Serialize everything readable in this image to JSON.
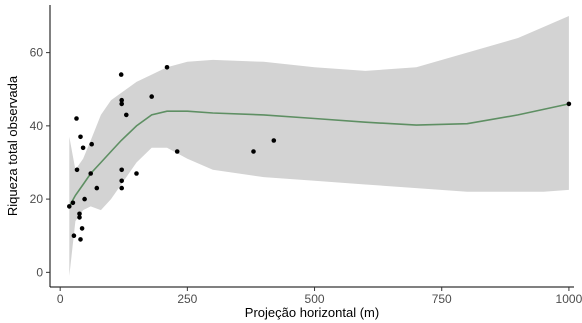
{
  "chart_data": {
    "type": "scatter",
    "title": "",
    "xlabel": "Projeção horizontal (m)",
    "ylabel": "Riqueza total observada",
    "xlim": [
      -20,
      1010
    ],
    "ylim": [
      -4,
      73
    ],
    "xticks": [
      0,
      250,
      500,
      750,
      1000
    ],
    "yticks": [
      0,
      20,
      40,
      60
    ],
    "xtick_labels": [
      "0",
      "250",
      "500",
      "750",
      "1000"
    ],
    "ytick_labels": [
      "0",
      "20",
      "40",
      "60"
    ],
    "grid": false,
    "points": [
      {
        "x": 18,
        "y": 18
      },
      {
        "x": 25,
        "y": 19
      },
      {
        "x": 27,
        "y": 10
      },
      {
        "x": 32,
        "y": 42
      },
      {
        "x": 33,
        "y": 28
      },
      {
        "x": 38,
        "y": 16
      },
      {
        "x": 38,
        "y": 15
      },
      {
        "x": 40,
        "y": 9
      },
      {
        "x": 40,
        "y": 37
      },
      {
        "x": 43,
        "y": 12
      },
      {
        "x": 45,
        "y": 34
      },
      {
        "x": 48,
        "y": 20
      },
      {
        "x": 60,
        "y": 27
      },
      {
        "x": 62,
        "y": 35
      },
      {
        "x": 72,
        "y": 23
      },
      {
        "x": 120,
        "y": 54
      },
      {
        "x": 121,
        "y": 47
      },
      {
        "x": 121,
        "y": 46
      },
      {
        "x": 121,
        "y": 28
      },
      {
        "x": 121,
        "y": 25
      },
      {
        "x": 121,
        "y": 23
      },
      {
        "x": 130,
        "y": 43
      },
      {
        "x": 150,
        "y": 27
      },
      {
        "x": 180,
        "y": 48
      },
      {
        "x": 210,
        "y": 56
      },
      {
        "x": 230,
        "y": 33
      },
      {
        "x": 380,
        "y": 33
      },
      {
        "x": 420,
        "y": 36
      },
      {
        "x": 1000,
        "y": 46
      }
    ],
    "smooth": {
      "color": "#5e8f63",
      "band_color": "#d3d3d3",
      "x": [
        18,
        30,
        45,
        60,
        80,
        100,
        120,
        150,
        180,
        210,
        250,
        300,
        400,
        500,
        600,
        700,
        800,
        900,
        950,
        1000
      ],
      "y": [
        18,
        21,
        24,
        27,
        30,
        33,
        36,
        40,
        43,
        44,
        44,
        43.5,
        43,
        42,
        41,
        40.2,
        40.6,
        43,
        44.5,
        46
      ],
      "lower": [
        -1,
        14,
        17,
        18,
        17,
        20,
        24,
        30,
        34,
        34,
        31,
        28,
        26,
        25,
        24,
        23,
        22,
        22,
        22,
        22.5
      ],
      "upper": [
        37,
        28,
        31,
        36,
        43,
        47,
        49,
        52,
        54,
        56,
        57.5,
        58,
        57.5,
        56,
        55,
        56,
        60,
        64,
        67,
        70
      ]
    },
    "point_color": "#000000",
    "axis_color": "#000000"
  }
}
